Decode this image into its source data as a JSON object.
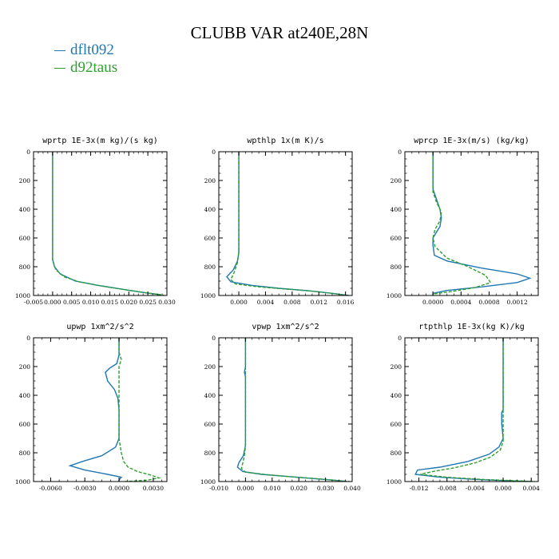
{
  "title": "CLUBB VAR at240E,28N",
  "legend": [
    {
      "name": "dflt092",
      "color": "#1f77b4"
    },
    {
      "name": "d92taus",
      "color": "#2ca02c"
    }
  ],
  "chart_data": [
    {
      "type": "line",
      "title": "wprtp  1E-3x(m kg)/(s kg)",
      "xlim": [
        -0.005,
        0.03
      ],
      "xticks": [
        -0.005,
        0.0,
        0.005,
        0.01,
        0.015,
        0.02,
        0.025,
        0.03
      ],
      "xtick_labels": [
        "-0.005",
        "0.000",
        "0.005",
        "0.010",
        "0.015",
        "0.020",
        "0.025",
        "0.030"
      ],
      "ylim": [
        0,
        1000
      ],
      "yticks": [
        0,
        200,
        400,
        600,
        800,
        1000
      ],
      "y_inverted": true,
      "series": [
        {
          "name": "dflt092",
          "color": "#1f77b4",
          "dash": "",
          "points": [
            [
              0.0,
              0
            ],
            [
              0.0,
              200
            ],
            [
              0.0,
              400
            ],
            [
              0.0,
              600
            ],
            [
              0.0,
              700
            ],
            [
              0.0,
              750
            ],
            [
              0.0005,
              800
            ],
            [
              0.002,
              850
            ],
            [
              0.006,
              900
            ],
            [
              0.012,
              930
            ],
            [
              0.018,
              955
            ],
            [
              0.024,
              980
            ],
            [
              0.0285,
              995
            ]
          ]
        },
        {
          "name": "d92taus",
          "color": "#2ca02c",
          "dash": "4,2",
          "points": [
            [
              0.0,
              0
            ],
            [
              0.0,
              200
            ],
            [
              0.0,
              400
            ],
            [
              0.0,
              600
            ],
            [
              0.0,
              700
            ],
            [
              0.0,
              750
            ],
            [
              0.0008,
              820
            ],
            [
              0.003,
              870
            ],
            [
              0.007,
              905
            ],
            [
              0.013,
              935
            ],
            [
              0.019,
              960
            ],
            [
              0.025,
              983
            ],
            [
              0.0292,
              998
            ]
          ]
        }
      ]
    },
    {
      "type": "line",
      "title": "wpthlp  1x(m K)/s",
      "xlim": [
        -0.003,
        0.017
      ],
      "xticks": [
        0.0,
        0.004,
        0.008,
        0.012,
        0.016
      ],
      "xtick_labels": [
        "0.000",
        "0.004",
        "0.008",
        "0.012",
        "0.016"
      ],
      "ylim": [
        0,
        1000
      ],
      "yticks": [
        0,
        200,
        400,
        600,
        800,
        1000
      ],
      "y_inverted": true,
      "series": [
        {
          "name": "dflt092",
          "color": "#1f77b4",
          "dash": "",
          "points": [
            [
              0.0,
              0
            ],
            [
              0.0,
              200
            ],
            [
              0.0,
              400
            ],
            [
              0.0,
              600
            ],
            [
              0.0,
              700
            ],
            [
              -0.0002,
              760
            ],
            [
              -0.0008,
              820
            ],
            [
              -0.0018,
              870
            ],
            [
              -0.0012,
              905
            ],
            [
              0.002,
              930
            ],
            [
              0.006,
              950
            ],
            [
              0.01,
              965
            ],
            [
              0.014,
              985
            ],
            [
              0.0165,
              1000
            ]
          ]
        },
        {
          "name": "d92taus",
          "color": "#2ca02c",
          "dash": "4,2",
          "points": [
            [
              0.0,
              0
            ],
            [
              0.0,
              200
            ],
            [
              0.0,
              400
            ],
            [
              0.0,
              600
            ],
            [
              0.0,
              700
            ],
            [
              -0.0002,
              770
            ],
            [
              -0.0007,
              840
            ],
            [
              -0.0012,
              890
            ],
            [
              -0.0005,
              920
            ],
            [
              0.003,
              940
            ],
            [
              0.007,
              955
            ],
            [
              0.011,
              970
            ],
            [
              0.0145,
              988
            ],
            [
              0.0163,
              1000
            ]
          ]
        }
      ]
    },
    {
      "type": "line",
      "title": "wprcp  1E-3x(m/s) (kg/kg)",
      "xlim": [
        -0.0004,
        0.0015
      ],
      "xticks": [
        0.0,
        0.0004,
        0.0008,
        0.0012
      ],
      "xtick_labels": [
        "0.0000",
        "0.0004",
        "0.0008",
        "0.0012"
      ],
      "ylim": [
        0,
        1000
      ],
      "yticks": [
        0,
        200,
        400,
        600,
        800,
        1000
      ],
      "y_inverted": true,
      "series": [
        {
          "name": "dflt092",
          "color": "#1f77b4",
          "dash": "",
          "points": [
            [
              0.0,
              0
            ],
            [
              0.0,
              200
            ],
            [
              0.0,
              260
            ],
            [
              5e-05,
              330
            ],
            [
              0.0001,
              400
            ],
            [
              0.00012,
              460
            ],
            [
              0.0001,
              520
            ],
            [
              5e-05,
              560
            ],
            [
              0.0,
              600
            ],
            [
              0.0,
              650
            ],
            [
              2e-05,
              720
            ],
            [
              0.0002,
              760
            ],
            [
              0.0007,
              810
            ],
            [
              0.0012,
              850
            ],
            [
              0.00138,
              880
            ],
            [
              0.0012,
              910
            ],
            [
              0.0007,
              940
            ],
            [
              0.0002,
              965
            ],
            [
              0.0,
              985
            ],
            [
              0.0,
              1000
            ]
          ]
        },
        {
          "name": "d92taus",
          "color": "#2ca02c",
          "dash": "4,2",
          "points": [
            [
              0.0,
              0
            ],
            [
              0.0,
              200
            ],
            [
              0.0,
              280
            ],
            [
              5e-05,
              350
            ],
            [
              0.00012,
              420
            ],
            [
              0.0001,
              480
            ],
            [
              3e-05,
              540
            ],
            [
              0.0,
              600
            ],
            [
              3e-05,
              660
            ],
            [
              0.0002,
              740
            ],
            [
              0.0005,
              800
            ],
            [
              0.00075,
              860
            ],
            [
              0.00082,
              910
            ],
            [
              0.0006,
              945
            ],
            [
              0.0003,
              970
            ],
            [
              0.0,
              990
            ],
            [
              0.0,
              1000
            ]
          ]
        }
      ]
    },
    {
      "type": "line",
      "title": "upwp  1xm^2/s^2",
      "xlim": [
        -0.0075,
        0.0042
      ],
      "xticks": [
        -0.006,
        -0.003,
        0.0,
        0.003
      ],
      "xtick_labels": [
        "-0.0060",
        "-0.0030",
        "0.0000",
        "0.0030"
      ],
      "ylim": [
        0,
        1000
      ],
      "yticks": [
        0,
        200,
        400,
        600,
        800,
        1000
      ],
      "y_inverted": true,
      "series": [
        {
          "name": "dflt092",
          "color": "#1f77b4",
          "dash": "",
          "points": [
            [
              0.0,
              0
            ],
            [
              0.0,
              120
            ],
            [
              -0.0002,
              180
            ],
            [
              -0.0008,
              210
            ],
            [
              -0.0012,
              240
            ],
            [
              -0.001,
              300
            ],
            [
              -0.0004,
              360
            ],
            [
              -0.0001,
              420
            ],
            [
              0.0,
              500
            ],
            [
              0.0,
              600
            ],
            [
              0.0,
              700
            ],
            [
              -0.0003,
              760
            ],
            [
              -0.0015,
              820
            ],
            [
              -0.0032,
              860
            ],
            [
              -0.0043,
              890
            ],
            [
              -0.003,
              920
            ],
            [
              -0.001,
              950
            ],
            [
              0.0002,
              970
            ],
            [
              0.0,
              990
            ],
            [
              0.0,
              1000
            ]
          ]
        },
        {
          "name": "d92taus",
          "color": "#2ca02c",
          "dash": "4,2",
          "points": [
            [
              0.0,
              0
            ],
            [
              0.0,
              100
            ],
            [
              0.0002,
              150
            ],
            [
              0.0,
              200
            ],
            [
              0.0,
              300
            ],
            [
              0.0,
              400
            ],
            [
              0.0,
              500
            ],
            [
              0.0,
              600
            ],
            [
              0.0,
              700
            ],
            [
              0.0002,
              800
            ],
            [
              0.0004,
              860
            ],
            [
              0.0008,
              900
            ],
            [
              0.0016,
              930
            ],
            [
              0.0028,
              955
            ],
            [
              0.0035,
              975
            ],
            [
              0.0025,
              990
            ],
            [
              0.0005,
              1000
            ]
          ]
        }
      ]
    },
    {
      "type": "line",
      "title": "vpwp  1xm^2/s^2",
      "xlim": [
        -0.01,
        0.04
      ],
      "xticks": [
        -0.01,
        0.0,
        0.01,
        0.02,
        0.03,
        0.04
      ],
      "xtick_labels": [
        "-0.010",
        "0.000",
        "0.010",
        "0.020",
        "0.030",
        "0.040"
      ],
      "ylim": [
        0,
        1000
      ],
      "yticks": [
        0,
        200,
        400,
        600,
        800,
        1000
      ],
      "y_inverted": true,
      "series": [
        {
          "name": "dflt092",
          "color": "#1f77b4",
          "dash": "",
          "points": [
            [
              0.0,
              0
            ],
            [
              0.0,
              200
            ],
            [
              -0.0004,
              240
            ],
            [
              0.0,
              270
            ],
            [
              0.0,
              400
            ],
            [
              0.0,
              600
            ],
            [
              0.0,
              750
            ],
            [
              -0.0008,
              820
            ],
            [
              -0.0025,
              870
            ],
            [
              -0.003,
              900
            ],
            [
              -0.001,
              930
            ],
            [
              0.006,
              950
            ],
            [
              0.016,
              965
            ],
            [
              0.026,
              980
            ],
            [
              0.034,
              992
            ],
            [
              0.038,
              1000
            ]
          ]
        },
        {
          "name": "d92taus",
          "color": "#2ca02c",
          "dash": "4,2",
          "points": [
            [
              0.0,
              0
            ],
            [
              0.0,
              200
            ],
            [
              0.0,
              400
            ],
            [
              0.0,
              600
            ],
            [
              0.0,
              750
            ],
            [
              -0.0004,
              820
            ],
            [
              -0.001,
              870
            ],
            [
              -0.0015,
              910
            ],
            [
              0.0,
              935
            ],
            [
              0.008,
              952
            ],
            [
              0.018,
              968
            ],
            [
              0.028,
              982
            ],
            [
              0.035,
              994
            ],
            [
              0.039,
              1000
            ]
          ]
        }
      ]
    },
    {
      "type": "line",
      "title": "rtpthlp  1E-3x(kg K)/kg",
      "xlim": [
        -0.014,
        0.005
      ],
      "xticks": [
        -0.012,
        -0.008,
        -0.004,
        0.0,
        0.004
      ],
      "xtick_labels": [
        "-0.012",
        "-0.008",
        "-0.004",
        "0.000",
        "0.004"
      ],
      "ylim": [
        0,
        1000
      ],
      "yticks": [
        0,
        200,
        400,
        600,
        800,
        1000
      ],
      "y_inverted": true,
      "series": [
        {
          "name": "dflt092",
          "color": "#1f77b4",
          "dash": "",
          "points": [
            [
              0.0,
              0
            ],
            [
              0.0,
              200
            ],
            [
              0.0,
              400
            ],
            [
              0.0,
              500
            ],
            [
              -0.0002,
              520
            ],
            [
              -0.0002,
              600
            ],
            [
              0.0,
              700
            ],
            [
              -0.0006,
              760
            ],
            [
              -0.002,
              810
            ],
            [
              -0.005,
              860
            ],
            [
              -0.009,
              900
            ],
            [
              -0.0122,
              920
            ],
            [
              -0.0125,
              950
            ],
            [
              -0.009,
              970
            ],
            [
              -0.004,
              985
            ],
            [
              0.001,
              995
            ],
            [
              0.004,
              1000
            ]
          ]
        },
        {
          "name": "d92taus",
          "color": "#2ca02c",
          "dash": "4,2",
          "points": [
            [
              0.0,
              0
            ],
            [
              0.0,
              200
            ],
            [
              0.0,
              400
            ],
            [
              0.0,
              600
            ],
            [
              0.0,
              720
            ],
            [
              -0.0004,
              780
            ],
            [
              -0.0018,
              830
            ],
            [
              -0.004,
              870
            ],
            [
              -0.007,
              905
            ],
            [
              -0.01,
              930
            ],
            [
              -0.0118,
              950
            ],
            [
              -0.008,
              970
            ],
            [
              -0.003,
              985
            ],
            [
              0.002,
              995
            ],
            [
              0.0045,
              1000
            ]
          ]
        }
      ]
    }
  ]
}
